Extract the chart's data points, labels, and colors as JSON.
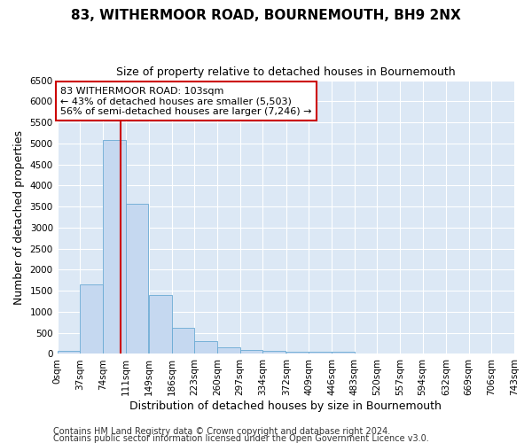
{
  "title": "83, WITHERMOOR ROAD, BOURNEMOUTH, BH9 2NX",
  "subtitle": "Size of property relative to detached houses in Bournemouth",
  "xlabel": "Distribution of detached houses by size in Bournemouth",
  "ylabel": "Number of detached properties",
  "footnote1": "Contains HM Land Registry data © Crown copyright and database right 2024.",
  "footnote2": "Contains public sector information licensed under the Open Government Licence v3.0.",
  "bin_edges": [
    0,
    37,
    74,
    111,
    149,
    186,
    223,
    260,
    297,
    334,
    372,
    409,
    446,
    483,
    520,
    557,
    594,
    632,
    669,
    706,
    743
  ],
  "bar_heights": [
    75,
    1650,
    5075,
    3575,
    1400,
    620,
    305,
    150,
    100,
    65,
    55,
    50,
    50,
    0,
    0,
    0,
    0,
    0,
    0,
    0
  ],
  "bar_color": "#c5d8f0",
  "bar_edge_color": "#6aaad4",
  "property_size": 103,
  "vline_color": "#cc0000",
  "annotation_line1": "83 WITHERMOOR ROAD: 103sqm",
  "annotation_line2": "← 43% of detached houses are smaller (5,503)",
  "annotation_line3": "56% of semi-detached houses are larger (7,246) →",
  "annotation_box_color": "#ffffff",
  "annotation_box_edge": "#cc0000",
  "ylim": [
    0,
    6500
  ],
  "xlim": [
    0,
    743
  ],
  "yticks": [
    0,
    500,
    1000,
    1500,
    2000,
    2500,
    3000,
    3500,
    4000,
    4500,
    5000,
    5500,
    6000,
    6500
  ],
  "bg_color": "#dce8f5",
  "grid_color": "#ffffff",
  "fig_bg_color": "#ffffff",
  "title_fontsize": 11,
  "subtitle_fontsize": 9,
  "axis_label_fontsize": 9,
  "tick_fontsize": 7.5,
  "annotation_fontsize": 8,
  "footnote_fontsize": 7
}
